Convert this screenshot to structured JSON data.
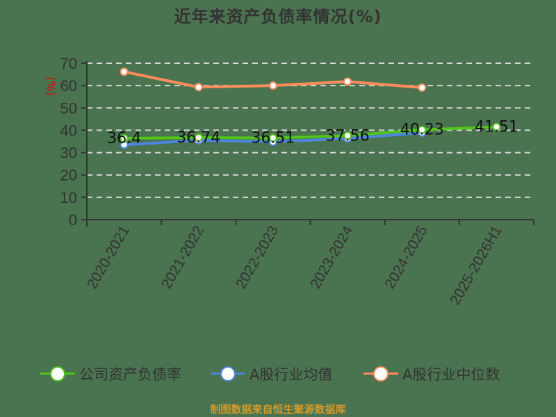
{
  "title": "近年来资产负债率情况(%)",
  "y_axis_unit_label": "(%)",
  "source": "制图数据来自恒生聚源数据库",
  "legend": [
    {
      "label": "公司资产负债率",
      "color": "#52c41a"
    },
    {
      "label": "A股行业均值",
      "color": "#4e86de"
    },
    {
      "label": "A股行业中位数",
      "color": "#ff8c5a"
    }
  ],
  "chart_data": {
    "type": "line",
    "title": "近年来资产负债率情况(%)",
    "xlabel": "",
    "ylabel": "(%)",
    "ylim": [
      0,
      70
    ],
    "yticks": [
      0,
      10,
      20,
      30,
      40,
      50,
      60,
      70
    ],
    "grid": true,
    "legend_position": "bottom",
    "categories": [
      "2020-2021",
      "2021-2022",
      "2022-2023",
      "2023-2024",
      "2024-2025",
      "2025-2026H1"
    ],
    "series": [
      {
        "name": "公司资产负债率",
        "color": "#52c41a",
        "values": [
          36.4,
          36.74,
          36.51,
          37.56,
          40.23,
          41.51
        ],
        "data_labels": [
          "36.4",
          "36.74",
          "36.51",
          "37.56",
          "40.23",
          "41.51"
        ]
      },
      {
        "name": "A股行业均值",
        "color": "#4e86de",
        "values": [
          33.5,
          35.5,
          34.8,
          36.3,
          38.9,
          null
        ]
      },
      {
        "name": "A股行业中位数",
        "color": "#ff8c5a",
        "values": [
          66.2,
          59.3,
          60.0,
          61.8,
          59.1,
          null
        ]
      }
    ]
  }
}
